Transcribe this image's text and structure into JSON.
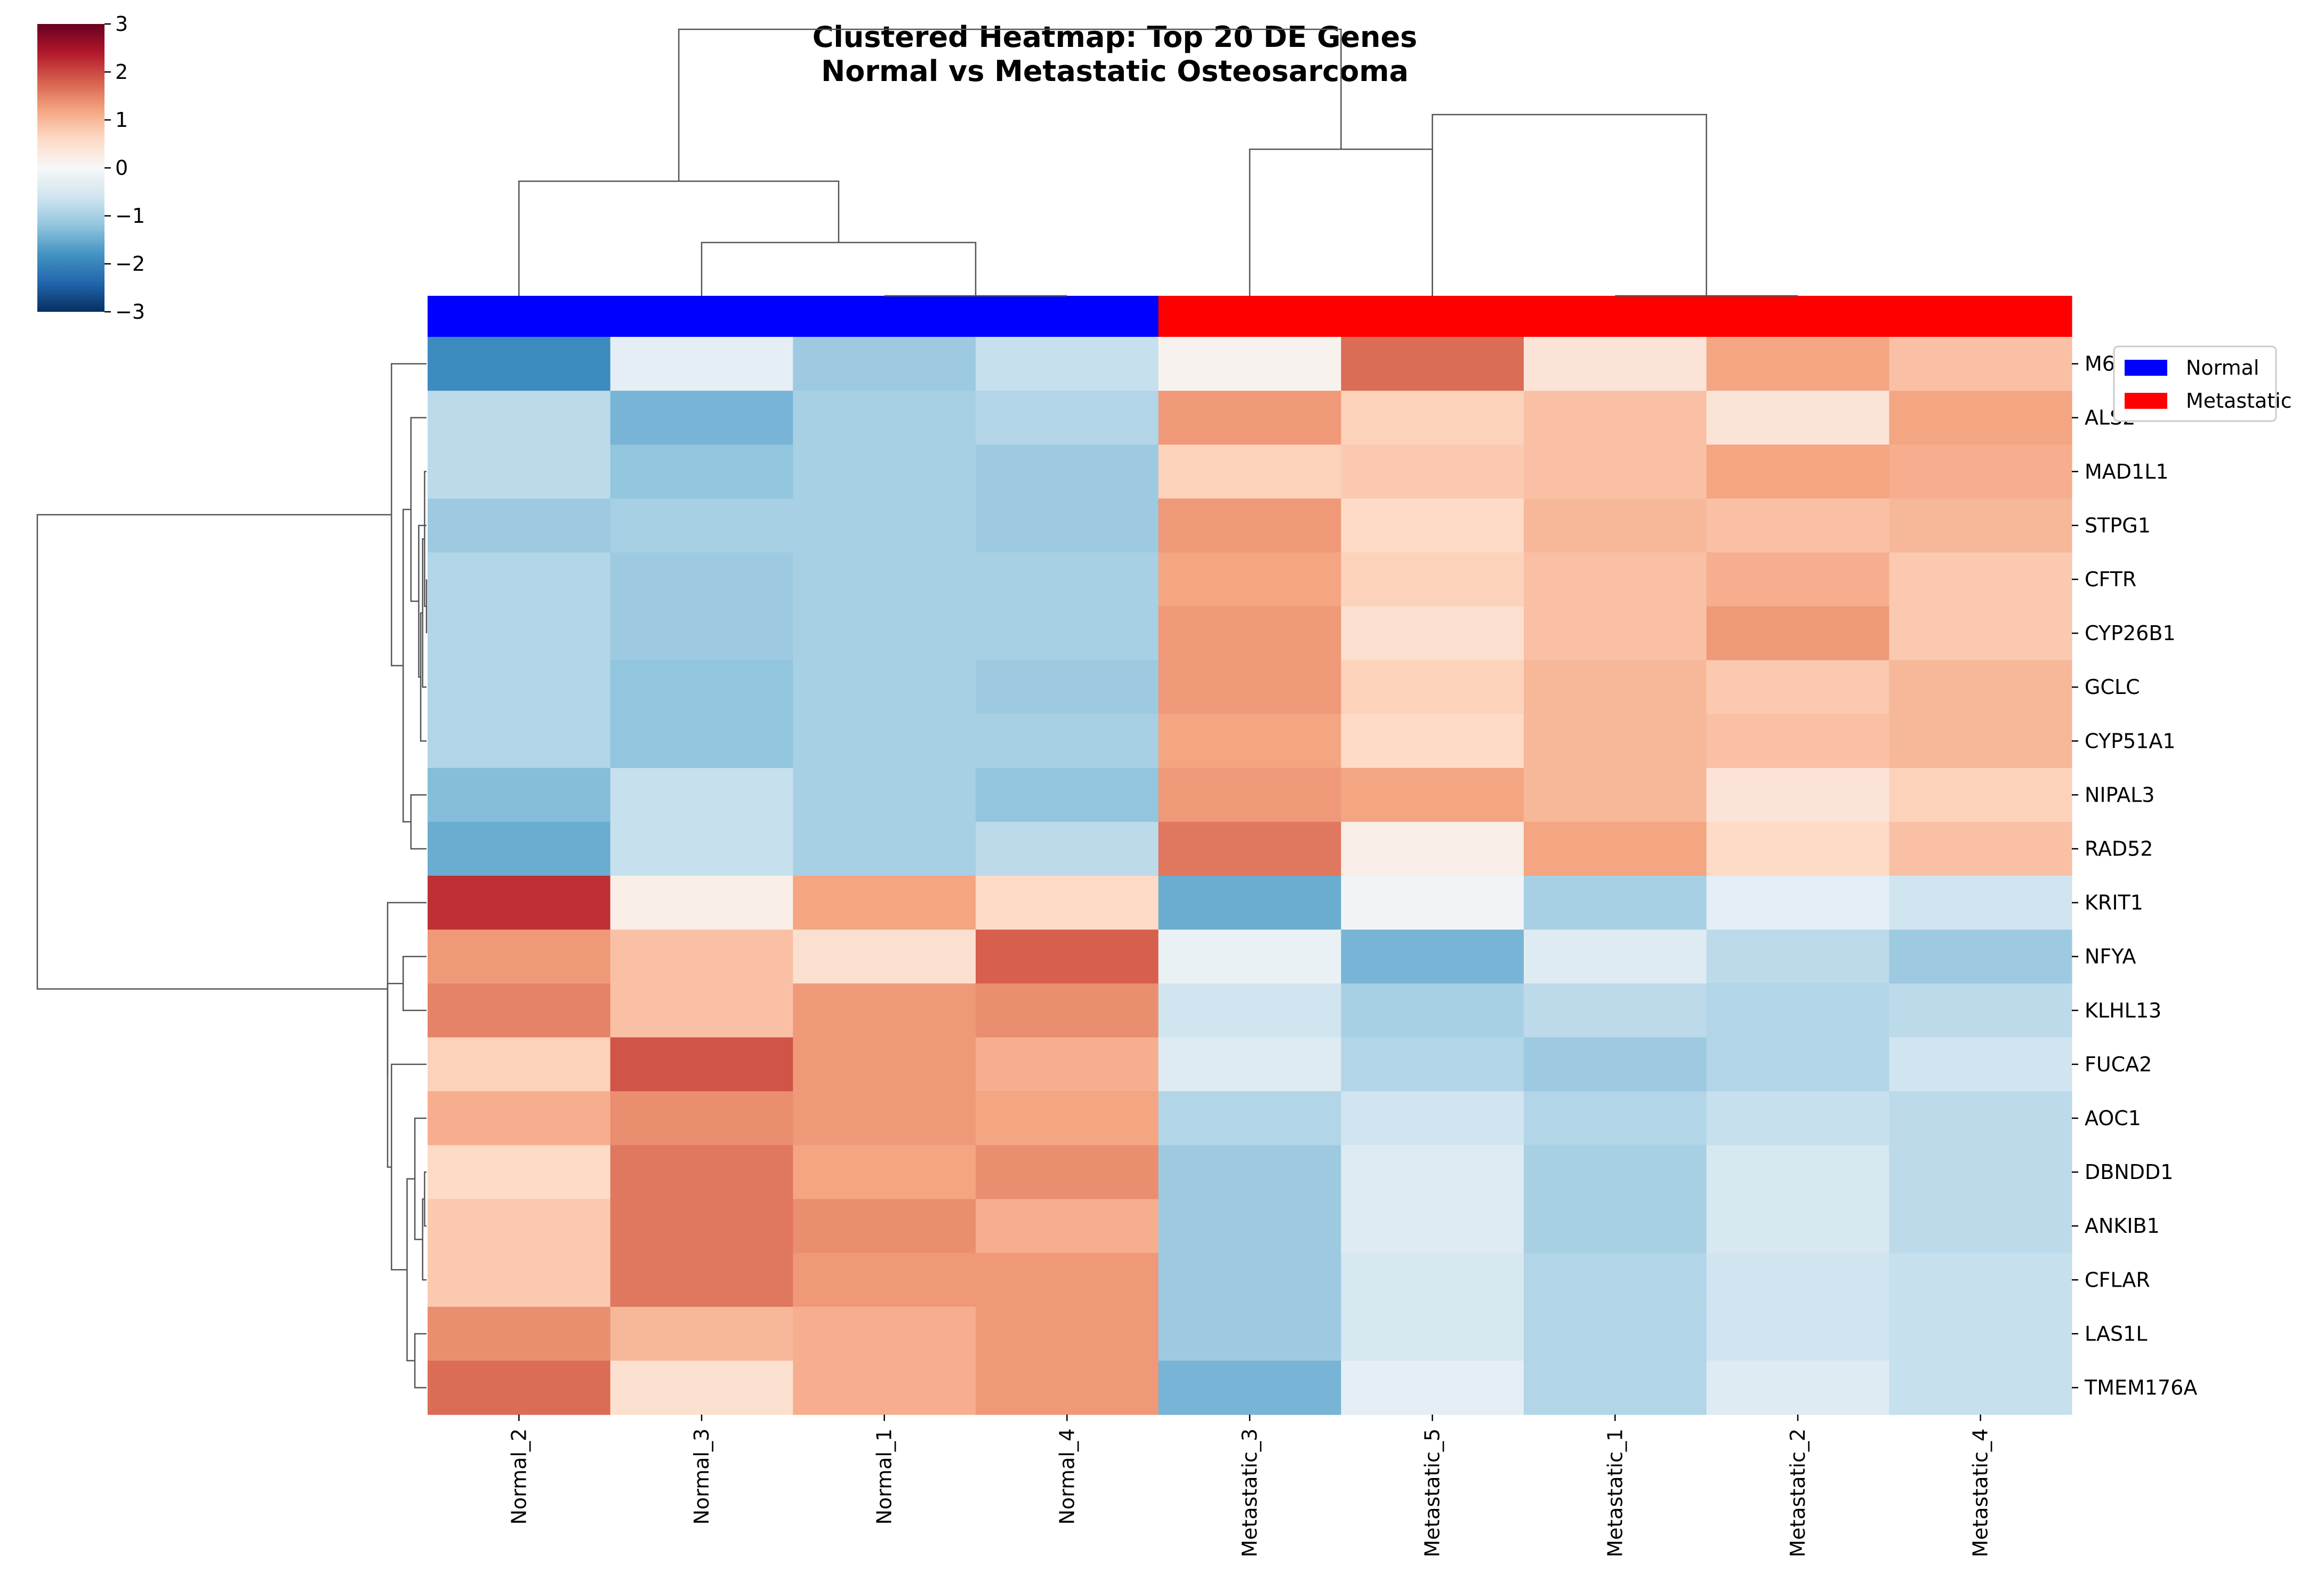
{
  "chart_data": {
    "type": "heatmap",
    "title": "Clustered Heatmap: Top 20 DE Genes",
    "subtitle": "Normal vs Metastatic Osteosarcoma",
    "columns": [
      "Normal_2",
      "Normal_3",
      "Normal_1",
      "Normal_4",
      "Metastatic_3",
      "Metastatic_5",
      "Metastatic_1",
      "Metastatic_2",
      "Metastatic_4"
    ],
    "column_groups": [
      "Normal",
      "Normal",
      "Normal",
      "Normal",
      "Metastatic",
      "Metastatic",
      "Metastatic",
      "Metastatic",
      "Metastatic"
    ],
    "rows": [
      "M6PR",
      "ALS2",
      "MAD1L1",
      "STPG1",
      "CFTR",
      "CYP26B1",
      "GCLC",
      "CYP51A1",
      "NIPAL3",
      "RAD52",
      "KRIT1",
      "NFYA",
      "KLHL13",
      "FUCA2",
      "AOC1",
      "DBNDD1",
      "ANKIB1",
      "CFLAR",
      "LAS1L",
      "TMEM176A"
    ],
    "values": [
      [
        -1.9,
        -0.3,
        -1.1,
        -0.7,
        0.1,
        1.7,
        0.4,
        1.2,
        0.9
      ],
      [
        -0.8,
        -1.4,
        -1.0,
        -0.9,
        1.3,
        0.7,
        0.9,
        0.4,
        1.2
      ],
      [
        -0.8,
        -1.2,
        -1.0,
        -1.1,
        0.7,
        0.8,
        0.9,
        1.2,
        1.1
      ],
      [
        -1.1,
        -1.0,
        -1.0,
        -1.1,
        1.3,
        0.6,
        1.0,
        0.9,
        1.0
      ],
      [
        -0.9,
        -1.1,
        -1.0,
        -1.0,
        1.2,
        0.7,
        0.9,
        1.1,
        0.8
      ],
      [
        -0.9,
        -1.1,
        -1.0,
        -1.0,
        1.3,
        0.5,
        0.9,
        1.3,
        0.8
      ],
      [
        -0.9,
        -1.2,
        -1.0,
        -1.1,
        1.3,
        0.7,
        1.0,
        0.8,
        1.0
      ],
      [
        -0.9,
        -1.2,
        -1.0,
        -1.0,
        1.2,
        0.6,
        1.0,
        0.9,
        1.0
      ],
      [
        -1.3,
        -0.7,
        -1.0,
        -1.2,
        1.3,
        1.2,
        1.0,
        0.4,
        0.7
      ],
      [
        -1.5,
        -0.7,
        -1.0,
        -0.8,
        1.6,
        0.2,
        1.2,
        0.6,
        0.9
      ],
      [
        2.2,
        0.2,
        1.2,
        0.6,
        -1.5,
        -0.1,
        -1.0,
        -0.3,
        -0.6
      ],
      [
        1.3,
        0.9,
        0.5,
        1.8,
        -0.2,
        -1.4,
        -0.4,
        -0.8,
        -1.1
      ],
      [
        1.5,
        0.9,
        1.3,
        1.4,
        -0.6,
        -1.0,
        -0.8,
        -0.9,
        -0.8
      ],
      [
        0.7,
        1.9,
        1.3,
        1.1,
        -0.4,
        -0.9,
        -1.1,
        -0.9,
        -0.6
      ],
      [
        1.1,
        1.4,
        1.3,
        1.2,
        -0.9,
        -0.6,
        -0.9,
        -0.7,
        -0.8
      ],
      [
        0.6,
        1.6,
        1.2,
        1.4,
        -1.1,
        -0.4,
        -1.0,
        -0.5,
        -0.8
      ],
      [
        0.8,
        1.6,
        1.4,
        1.1,
        -1.1,
        -0.4,
        -1.0,
        -0.5,
        -0.8
      ],
      [
        0.8,
        1.6,
        1.3,
        1.3,
        -1.1,
        -0.5,
        -0.9,
        -0.6,
        -0.7
      ],
      [
        1.4,
        1.0,
        1.1,
        1.3,
        -1.1,
        -0.5,
        -0.9,
        -0.6,
        -0.7
      ],
      [
        1.7,
        0.5,
        1.1,
        1.3,
        -1.4,
        -0.3,
        -0.9,
        -0.4,
        -0.7
      ]
    ],
    "colorscale": "RdBu_r",
    "vmin": -3,
    "vmax": 3,
    "colorbar_ticks": [
      -3,
      -2,
      -1,
      0,
      1,
      2,
      3
    ],
    "legend": [
      {
        "name": "Normal",
        "color": "#0000ff"
      },
      {
        "name": "Metastatic",
        "color": "#ff0000"
      }
    ],
    "legend_position": "right",
    "colors": {
      "normal": "#0000ff",
      "metastatic": "#ff0000",
      "dendrogram": "#555555"
    },
    "col_dendrogram": [
      [
        2,
        3,
        0
      ],
      [
        1,
        9,
        0.2
      ],
      [
        0,
        10,
        0.43
      ],
      [
        6,
        7,
        0
      ],
      [
        4,
        5,
        0.55
      ],
      [
        5,
        12,
        0.68
      ],
      [
        13,
        11,
        1
      ]
    ],
    "row_dendrogram": [
      [
        4,
        5,
        0
      ],
      [
        2,
        20,
        0.005
      ],
      [
        6,
        21,
        0.01
      ],
      [
        7,
        22,
        0.015
      ],
      [
        3,
        23,
        0.02
      ],
      [
        1,
        24,
        0.04
      ],
      [
        8,
        9,
        0.04
      ],
      [
        25,
        26,
        0.06
      ],
      [
        0,
        27,
        0.09
      ],
      [
        15,
        16,
        0.005
      ],
      [
        17,
        29,
        0.01
      ],
      [
        14,
        30,
        0.03
      ],
      [
        18,
        19,
        0.03
      ],
      [
        31,
        32,
        0.05
      ],
      [
        13,
        33,
        0.09
      ],
      [
        11,
        12,
        0.06
      ],
      [
        34,
        35,
        0.1
      ],
      [
        10,
        36,
        0.1
      ],
      [
        28,
        37,
        1
      ]
    ]
  }
}
